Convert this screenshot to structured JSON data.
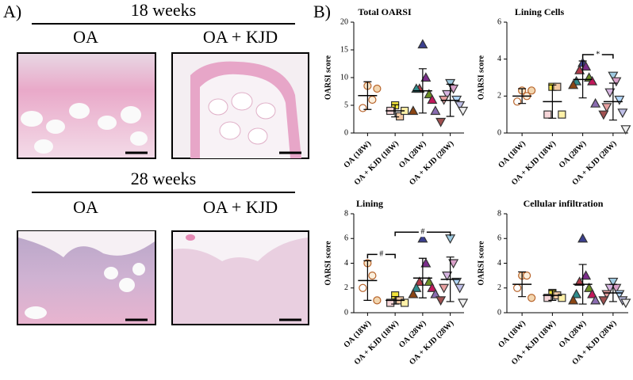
{
  "panel_labels": [
    "A)",
    "B)"
  ],
  "histology": [
    {
      "title": "18 weeks",
      "columns": [
        "OA",
        "OA + KJD"
      ]
    },
    {
      "title": "28 weeks",
      "columns": [
        "OA",
        "OA + KJD"
      ]
    }
  ],
  "group_styles": [
    {
      "marker": "circle",
      "stroke": "#b8652c",
      "colors": [
        "#f6e2c4",
        "#fbefdc",
        "#ffffff",
        "#f2d6b0"
      ]
    },
    {
      "marker": "square",
      "stroke": "#333333",
      "colors": [
        "#f2e33a",
        "#f3c9a3",
        "#f6d5d8",
        "#fff1a8"
      ]
    },
    {
      "marker": "triangle",
      "stroke": "#333333",
      "colors": [
        "#3b3f8f",
        "#7b2d8b",
        "#b03a48",
        "#6b8e23",
        "#2e8b8b",
        "#c2185b",
        "#8b4513",
        "#8a6bb0"
      ]
    },
    {
      "marker": "triangle-down",
      "stroke": "#333333",
      "colors": [
        "#9ecae1",
        "#d9a0c8",
        "#d6b4e0",
        "#b3d9ff",
        "#e8a0a0",
        "#c0c0e8",
        "#a05050",
        "#f0f0f0"
      ]
    }
  ],
  "chart_data": [
    {
      "type": "dot",
      "title": "Total OARSI",
      "y_label": "OARSI score",
      "categories": [
        "OA (18W)",
        "OA + KJD (18W)",
        "OA (28W)",
        "OA + KJD (28W)"
      ],
      "ylim": [
        0,
        20
      ],
      "yticks": [
        0,
        5,
        10,
        15,
        20
      ],
      "groups": [
        {
          "values": [
            8.5,
            6,
            4.5,
            8
          ],
          "mean": 6.75,
          "sd": 2.5
        },
        {
          "values": [
            5,
            3,
            4,
            4
          ],
          "mean": 4,
          "sd": 1.1
        },
        {
          "values": [
            16,
            10,
            8,
            7,
            8,
            6,
            4,
            4
          ],
          "mean": 7.6,
          "sd": 4
        },
        {
          "values": [
            9,
            8,
            7,
            6,
            6,
            5,
            2,
            4
          ],
          "mean": 5.9,
          "sd": 2.9
        }
      ],
      "annotations": []
    },
    {
      "type": "dot",
      "title": "Lining Cells",
      "y_label": "OARSI score",
      "categories": [
        "OA (18W)",
        "OA + KJD (18W)",
        "OA (28W)",
        "OA + KJD (28W)"
      ],
      "ylim": [
        0,
        6
      ],
      "yticks": [
        0,
        2,
        4,
        6
      ],
      "groups": [
        {
          "values": [
            2.3,
            2,
            1.7,
            2.3
          ],
          "mean": 2,
          "sd": 0.4
        },
        {
          "values": [
            2.5,
            2.5,
            1,
            1
          ],
          "mean": 1.7,
          "sd": 0.9
        },
        {
          "values": [
            3.8,
            3.6,
            3.4,
            3,
            2.8,
            2.8,
            2.6,
            1.6
          ],
          "mean": 2.9,
          "sd": 1
        },
        {
          "values": [
            3.1,
            2.8,
            2.2,
            1.8,
            1.4,
            1.1,
            1,
            0.2
          ],
          "mean": 1.7,
          "sd": 1
        }
      ],
      "annotations": [
        {
          "text": "*",
          "from": 2,
          "to": 3
        }
      ]
    },
    {
      "type": "dot",
      "title": "Lining",
      "y_label": "OARSI score",
      "categories": [
        "OA (18W)",
        "OA + KJD (18W)",
        "OA (28W)",
        "OA + KJD (28W)"
      ],
      "ylim": [
        0,
        8
      ],
      "yticks": [
        0,
        2,
        4,
        6,
        8
      ],
      "groups": [
        {
          "values": [
            4,
            3,
            2,
            1
          ],
          "mean": 2.6,
          "sd": 1.6
        },
        {
          "values": [
            1.4,
            1,
            0.8,
            0.8
          ],
          "mean": 1,
          "sd": 0.3
        },
        {
          "values": [
            6,
            4,
            2.5,
            2.5,
            2,
            2,
            1.5,
            1.5
          ],
          "mean": 2.8,
          "sd": 1.6
        },
        {
          "values": [
            6,
            4,
            3,
            2.5,
            2,
            2,
            1,
            0.8
          ],
          "mean": 2.7,
          "sd": 1.8
        }
      ],
      "annotations": [
        {
          "text": "#",
          "from": 0,
          "to": 1
        },
        {
          "text": "#",
          "from": 1,
          "to": 3
        }
      ]
    },
    {
      "type": "dot",
      "title": "Cellular infiltration",
      "y_label": "OARSI score",
      "categories": [
        "OA (18W)",
        "OA + KJD (18W)",
        "OA (28W)",
        "OA + KJD (28W)"
      ],
      "ylim": [
        0,
        8
      ],
      "yticks": [
        0,
        2,
        4,
        6,
        8
      ],
      "groups": [
        {
          "values": [
            3,
            3,
            2,
            1.2
          ],
          "mean": 2.3,
          "sd": 1
        },
        {
          "values": [
            1.6,
            1.4,
            1.2,
            1.2
          ],
          "mean": 1.4,
          "sd": 0.4
        },
        {
          "values": [
            6,
            3,
            2.5,
            2,
            1.5,
            1.5,
            1,
            1
          ],
          "mean": 2.3,
          "sd": 1.6
        },
        {
          "values": [
            2.5,
            2,
            2,
            1.5,
            1.5,
            1,
            1,
            0.8
          ],
          "mean": 1.6,
          "sd": 0.7
        }
      ],
      "annotations": []
    }
  ]
}
